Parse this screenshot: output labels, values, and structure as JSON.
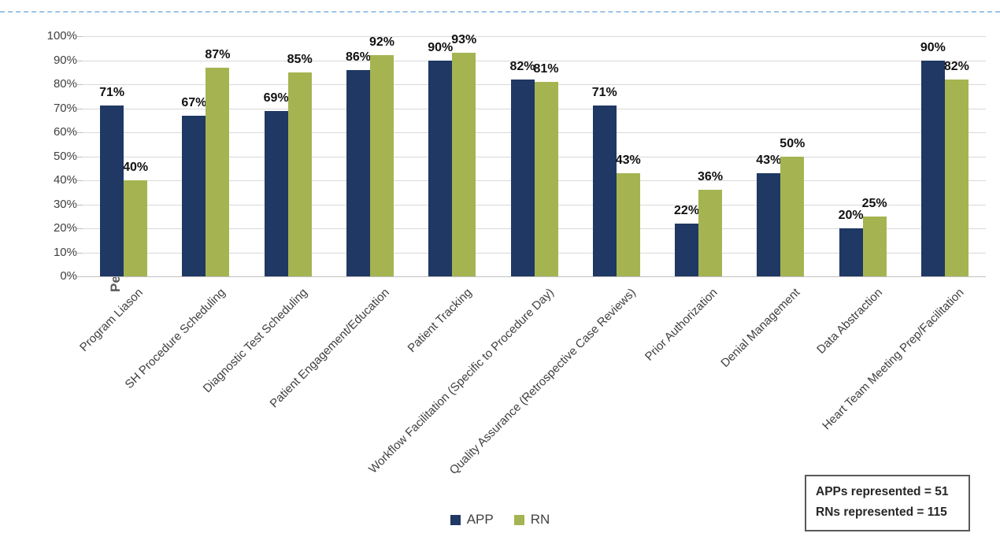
{
  "page": {
    "background_color": "#ffffff",
    "top_rule_color": "#9dc3e6"
  },
  "chart_data": {
    "type": "bar",
    "title": "",
    "xlabel": "",
    "ylabel": "Percentage of License Level",
    "ylim": [
      0,
      100
    ],
    "ytick_step": 10,
    "ytick_labels": [
      "0%",
      "10%",
      "20%",
      "30%",
      "40%",
      "50%",
      "60%",
      "70%",
      "80%",
      "90%",
      "100%"
    ],
    "grid": true,
    "legend_position": "bottom",
    "value_label_suffix": "%",
    "categories": [
      "Program Liason",
      "SH Procedure Scheduling",
      "Diagnostic Test Scheduling",
      "Patient Engagement/Education",
      "Patient Tracking",
      "Workflow Facilitation (Specific to Procedure Day)",
      "Quality Assurance (Retrospective Case Reviews)",
      "Prior Authorization",
      "Denial Management",
      "Data Abstraction",
      "Heart Team Meeting Prep/Facilitation"
    ],
    "series": [
      {
        "name": "APP",
        "color": "#1f3864",
        "values": [
          71,
          67,
          69,
          86,
          90,
          82,
          71,
          22,
          43,
          20,
          90
        ]
      },
      {
        "name": "RN",
        "color": "#a5b451",
        "values": [
          40,
          87,
          85,
          92,
          93,
          81,
          43,
          36,
          50,
          25,
          82
        ]
      }
    ]
  },
  "annotation_box": {
    "lines": [
      "APPs represented = 51",
      "RNs represented = 115"
    ]
  }
}
